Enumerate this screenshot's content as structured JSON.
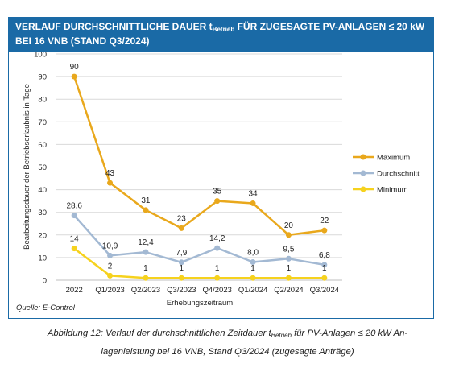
{
  "header": {
    "title_part1": "VERLAUF DURCHSCHNITTLICHE DAUER  t",
    "title_sub": "Betrieb",
    "title_part2": " FÜR ZUGESAGTE PV-ANLAGEN ≤ 20 kW",
    "title_line2": "BEI 16 VNB (STAND Q3/2024)"
  },
  "source": "Quelle: E-Control",
  "caption": {
    "part1": "Abbildung 12: Verlauf der durchschnittlichen Zeitdauer t",
    "sub": "Betrieb",
    "part2": " für PV-Anlagen ≤ 20 kW An-",
    "line2": "lagenleistung bei 16 VNB, Stand Q3/2024 (zugesagte Anträge)"
  },
  "colors": {
    "maximum": "#e9a81c",
    "durchschnitt": "#a3b9d3",
    "minimum": "#f6d21e",
    "header": "#1a6aa6",
    "grid": "#d9d9d9"
  },
  "chart_data": {
    "type": "line",
    "title": "",
    "xlabel": "Erhebungszeitraum",
    "ylabel": "Bearbeitungsdauer der Betriebserlaubnis in Tage",
    "categories": [
      "2022",
      "Q1/2023",
      "Q2/2023",
      "Q3/2023",
      "Q4/2023",
      "Q1/2024",
      "Q2/2024",
      "Q3/2024"
    ],
    "ylim": [
      0,
      100
    ],
    "yticks": [
      0,
      10,
      20,
      30,
      40,
      50,
      60,
      70,
      80,
      90,
      100
    ],
    "grid": true,
    "legend": "right",
    "series": [
      {
        "name": "Maximum",
        "key": "maximum",
        "values": [
          90,
          43,
          31,
          23,
          35,
          34,
          20,
          22
        ],
        "labels": [
          "90",
          "43",
          "31",
          "23",
          "35",
          "34",
          "20",
          "22"
        ]
      },
      {
        "name": "Durchschnitt",
        "key": "durchschnitt",
        "values": [
          28.6,
          10.9,
          12.4,
          7.9,
          14.2,
          8.0,
          9.5,
          6.8
        ],
        "labels": [
          "28,6",
          "10,9",
          "12,4",
          "7,9",
          "14,2",
          "8,0",
          "9,5",
          "6,8"
        ]
      },
      {
        "name": "Minimum",
        "key": "minimum",
        "values": [
          14,
          2,
          1,
          1,
          1,
          1,
          1,
          1
        ],
        "labels": [
          "14",
          "2",
          "1",
          "1",
          "1",
          "1",
          "1",
          "1"
        ]
      }
    ]
  }
}
